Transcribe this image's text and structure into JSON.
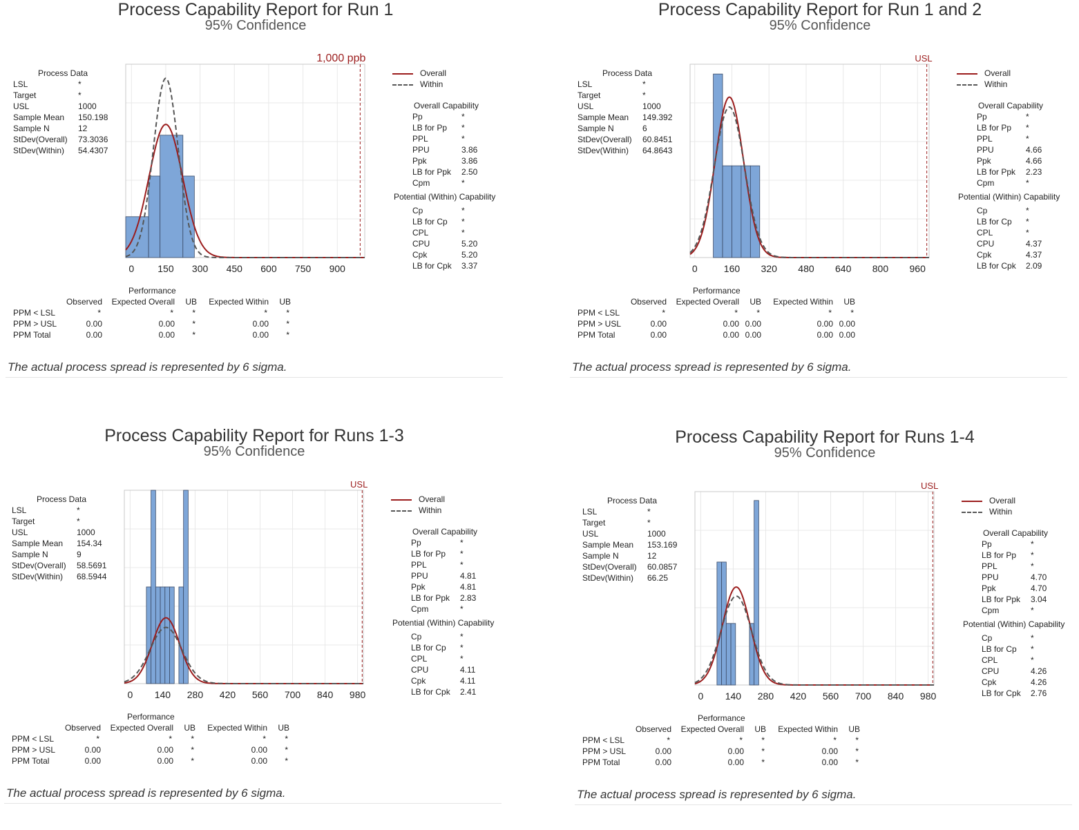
{
  "chart_data": [
    {
      "type": "histogram",
      "title": "Process Capability Report for Run 1",
      "subtitle": "95% Confidence",
      "usl_label": "1,000 ppb",
      "xlim": [
        -25,
        1020
      ],
      "ylim": [
        0,
        0.0079
      ],
      "xticks": [
        0,
        150,
        300,
        450,
        600,
        750,
        900
      ],
      "usl": 1000,
      "bins": [
        {
          "x0": -25,
          "x1": 75,
          "h": 0.00167
        },
        {
          "x0": 75,
          "x1": 125,
          "h": 0.00333
        },
        {
          "x0": 125,
          "x1": 225,
          "h": 0.005
        },
        {
          "x0": 225,
          "x1": 275,
          "h": 0.00333
        }
      ],
      "overall_curve": {
        "mean": 150.198,
        "sd": 73.3036
      },
      "within_curve": {
        "mean": 150.198,
        "sd": 54.4307
      },
      "legend": [
        "Overall",
        "Within"
      ],
      "process_data": [
        [
          "LSL",
          "*"
        ],
        [
          "Target",
          "*"
        ],
        [
          "USL",
          "1000"
        ],
        [
          "Sample Mean",
          "150.198"
        ],
        [
          "Sample N",
          "12"
        ],
        [
          "StDev(Overall)",
          "73.3036"
        ],
        [
          "StDev(Within)",
          "54.4307"
        ]
      ],
      "overall_capability": [
        [
          "Pp",
          "*"
        ],
        [
          "LB for Pp",
          "*"
        ],
        [
          "PPL",
          "*"
        ],
        [
          "PPU",
          "3.86"
        ],
        [
          "Ppk",
          "3.86"
        ],
        [
          "LB for Ppk",
          "2.50"
        ],
        [
          "Cpm",
          "*"
        ]
      ],
      "within_capability": [
        [
          "Cp",
          "*"
        ],
        [
          "LB for Cp",
          "*"
        ],
        [
          "CPL",
          "*"
        ],
        [
          "CPU",
          "5.20"
        ],
        [
          "Cpk",
          "5.20"
        ],
        [
          "LB for Cpk",
          "3.37"
        ]
      ],
      "performance": {
        "rows": [
          [
            "PPM < LSL",
            "*",
            "*",
            "*",
            "*",
            "*"
          ],
          [
            "PPM > USL",
            "0.00",
            "0.00",
            "*",
            "0.00",
            "*"
          ],
          [
            "PPM Total",
            "0.00",
            "0.00",
            "*",
            "0.00",
            "*"
          ]
        ]
      },
      "note": "The actual process spread is represented by 6 sigma."
    },
    {
      "type": "histogram",
      "title": "Process Capability Report for Run 1 and 2",
      "subtitle": "95% Confidence",
      "usl_label": "USL",
      "xlim": [
        -20,
        1010
      ],
      "ylim": [
        0,
        0.0079
      ],
      "xticks": [
        0,
        160,
        320,
        480,
        640,
        800,
        960
      ],
      "usl": 1000,
      "bins": [
        {
          "x0": 80,
          "x1": 120,
          "h": 0.0075
        },
        {
          "x0": 120,
          "x1": 160,
          "h": 0.00375
        },
        {
          "x0": 160,
          "x1": 200,
          "h": 0.00375
        },
        {
          "x0": 200,
          "x1": 240,
          "h": 0.00375
        },
        {
          "x0": 240,
          "x1": 280,
          "h": 0.00375
        }
      ],
      "overall_curve": {
        "mean": 149.392,
        "sd": 60.8451
      },
      "within_curve": {
        "mean": 149.392,
        "sd": 64.8643
      },
      "legend": [
        "Overall",
        "Within"
      ],
      "process_data": [
        [
          "LSL",
          "*"
        ],
        [
          "Target",
          "*"
        ],
        [
          "USL",
          "1000"
        ],
        [
          "Sample Mean",
          "149.392"
        ],
        [
          "Sample N",
          "6"
        ],
        [
          "StDev(Overall)",
          "60.8451"
        ],
        [
          "StDev(Within)",
          "64.8643"
        ]
      ],
      "overall_capability": [
        [
          "Pp",
          "*"
        ],
        [
          "LB for Pp",
          "*"
        ],
        [
          "PPL",
          "*"
        ],
        [
          "PPU",
          "4.66"
        ],
        [
          "Ppk",
          "4.66"
        ],
        [
          "LB for Ppk",
          "2.23"
        ],
        [
          "Cpm",
          "*"
        ]
      ],
      "within_capability": [
        [
          "Cp",
          "*"
        ],
        [
          "LB for Cp",
          "*"
        ],
        [
          "CPL",
          "*"
        ],
        [
          "CPU",
          "4.37"
        ],
        [
          "Cpk",
          "4.37"
        ],
        [
          "LB for Cpk",
          "2.09"
        ]
      ],
      "performance": {
        "rows": [
          [
            "PPM < LSL",
            "*",
            "*",
            "*",
            "*",
            "*"
          ],
          [
            "PPM > USL",
            "0.00",
            "0.00",
            "0.00",
            "0.00",
            "0.00"
          ],
          [
            "PPM Total",
            "0.00",
            "0.00",
            "0.00",
            "0.00",
            "0.00"
          ]
        ]
      },
      "note": "The actual process spread is represented by 6 sigma."
    },
    {
      "type": "histogram",
      "title": "Process Capability Report for Runs 1-3",
      "subtitle": "95% Confidence",
      "usl_label": "USL",
      "xlim": [
        -25,
        1005
      ],
      "ylim": [
        0,
        0.02
      ],
      "xticks": [
        0,
        140,
        280,
        420,
        560,
        700,
        840,
        980
      ],
      "usl": 1000,
      "bins": [
        {
          "x0": 70,
          "x1": 90,
          "h": 0.01
        },
        {
          "x0": 90,
          "x1": 110,
          "h": 0.02
        },
        {
          "x0": 110,
          "x1": 130,
          "h": 0.01
        },
        {
          "x0": 130,
          "x1": 150,
          "h": 0.01
        },
        {
          "x0": 150,
          "x1": 170,
          "h": 0.01
        },
        {
          "x0": 170,
          "x1": 190,
          "h": 0.01
        },
        {
          "x0": 210,
          "x1": 230,
          "h": 0.01
        },
        {
          "x0": 230,
          "x1": 250,
          "h": 0.02
        }
      ],
      "overall_curve": {
        "mean": 154.34,
        "sd": 58.5691
      },
      "within_curve": {
        "mean": 154.34,
        "sd": 68.5944
      },
      "legend": [
        "Overall",
        "Within"
      ],
      "process_data": [
        [
          "LSL",
          "*"
        ],
        [
          "Target",
          "*"
        ],
        [
          "USL",
          "1000"
        ],
        [
          "Sample Mean",
          "154.34"
        ],
        [
          "Sample N",
          "9"
        ],
        [
          "StDev(Overall)",
          "58.5691"
        ],
        [
          "StDev(Within)",
          "68.5944"
        ]
      ],
      "overall_capability": [
        [
          "Pp",
          "*"
        ],
        [
          "LB for Pp",
          "*"
        ],
        [
          "PPL",
          "*"
        ],
        [
          "PPU",
          "4.81"
        ],
        [
          "Ppk",
          "4.81"
        ],
        [
          "LB for Ppk",
          "2.83"
        ],
        [
          "Cpm",
          "*"
        ]
      ],
      "within_capability": [
        [
          "Cp",
          "*"
        ],
        [
          "LB for Cp",
          "*"
        ],
        [
          "CPL",
          "*"
        ],
        [
          "CPU",
          "4.11"
        ],
        [
          "Cpk",
          "4.11"
        ],
        [
          "LB for Cpk",
          "2.41"
        ]
      ],
      "performance": {
        "rows": [
          [
            "PPM < LSL",
            "*",
            "*",
            "*",
            "*",
            "*"
          ],
          [
            "PPM > USL",
            "0.00",
            "0.00",
            "*",
            "0.00",
            "*"
          ],
          [
            "PPM Total",
            "0.00",
            "0.00",
            "*",
            "0.00",
            "*"
          ]
        ]
      },
      "note": "The actual process spread is represented by 6 sigma."
    },
    {
      "type": "histogram",
      "title": "Process Capability Report for Runs 1-4",
      "subtitle": "95% Confidence",
      "usl_label": "USL",
      "xlim": [
        -25,
        1005
      ],
      "ylim": [
        0,
        0.0131
      ],
      "xticks": [
        0,
        140,
        280,
        420,
        560,
        700,
        840,
        980
      ],
      "usl": 1000,
      "bins": [
        {
          "x0": 70,
          "x1": 90,
          "h": 0.00833
        },
        {
          "x0": 90,
          "x1": 110,
          "h": 0.00833
        },
        {
          "x0": 110,
          "x1": 130,
          "h": 0.00417
        },
        {
          "x0": 130,
          "x1": 150,
          "h": 0.00417
        },
        {
          "x0": 210,
          "x1": 230,
          "h": 0.00417
        },
        {
          "x0": 230,
          "x1": 250,
          "h": 0.0125
        }
      ],
      "overall_curve": {
        "mean": 153.169,
        "sd": 60.0857
      },
      "within_curve": {
        "mean": 153.169,
        "sd": 66.25
      },
      "legend": [
        "Overall",
        "Within"
      ],
      "process_data": [
        [
          "LSL",
          "*"
        ],
        [
          "Target",
          "*"
        ],
        [
          "USL",
          "1000"
        ],
        [
          "Sample Mean",
          "153.169"
        ],
        [
          "Sample N",
          "12"
        ],
        [
          "StDev(Overall)",
          "60.0857"
        ],
        [
          "StDev(Within)",
          "66.25"
        ]
      ],
      "overall_capability": [
        [
          "Pp",
          "*"
        ],
        [
          "LB for Pp",
          "*"
        ],
        [
          "PPL",
          "*"
        ],
        [
          "PPU",
          "4.70"
        ],
        [
          "Ppk",
          "4.70"
        ],
        [
          "LB for Ppk",
          "3.04"
        ],
        [
          "Cpm",
          "*"
        ]
      ],
      "within_capability": [
        [
          "Cp",
          "*"
        ],
        [
          "LB for Cp",
          "*"
        ],
        [
          "CPL",
          "*"
        ],
        [
          "CPU",
          "4.26"
        ],
        [
          "Cpk",
          "4.26"
        ],
        [
          "LB for Cpk",
          "2.76"
        ]
      ],
      "performance": {
        "rows": [
          [
            "PPM < LSL",
            "*",
            "*",
            "*",
            "*",
            "*"
          ],
          [
            "PPM > USL",
            "0.00",
            "0.00",
            "*",
            "0.00",
            "*"
          ],
          [
            "PPM Total",
            "0.00",
            "0.00",
            "*",
            "0.00",
            "*"
          ]
        ]
      },
      "note": "The actual process spread is represented by 6 sigma."
    }
  ],
  "labels": {
    "process_data_header": "Process Data",
    "overall_capability_header": "Overall Capability",
    "within_capability_header": "Potential (Within) Capability",
    "performance_header": "Performance",
    "performance_columns": [
      "Observed",
      "Expected Overall",
      "UB",
      "Expected Within",
      "UB"
    ]
  },
  "colors": {
    "bar_fill": "#7ea6d8",
    "bar_stroke": "#3a4a66",
    "overall_curve": "#9b1c1c",
    "within_curve": "#555555",
    "usl_line": "#9b1c1c",
    "grid": "#e8e8e8",
    "frame": "#c8c8c8"
  }
}
